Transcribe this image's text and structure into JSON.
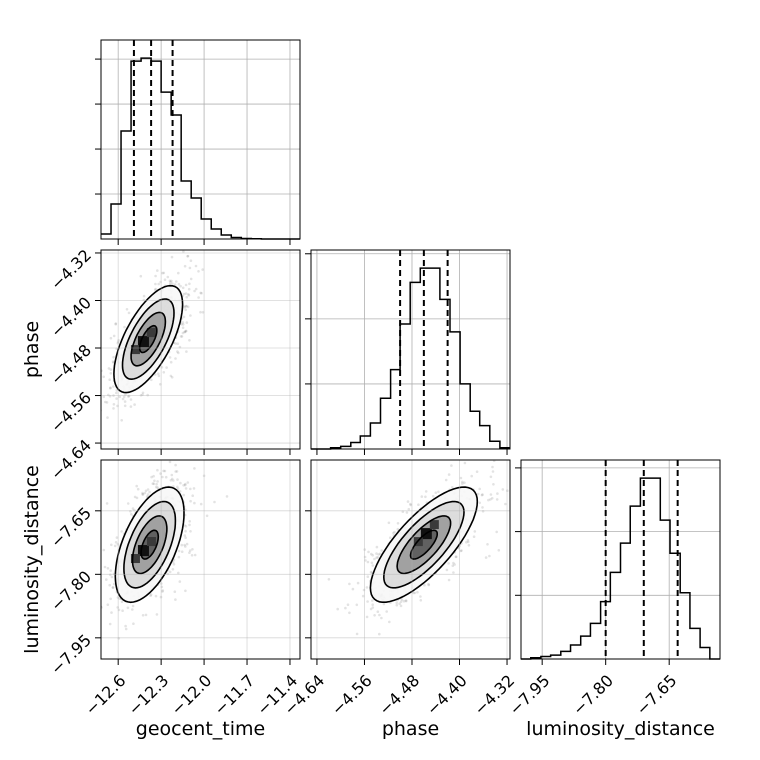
{
  "chart_data": {
    "type": "corner",
    "parameters": [
      "geocent_time",
      "phase",
      "luminosity_distance"
    ],
    "axis_labels": {
      "x": [
        "geocent_time",
        "phase",
        "luminosity_distance"
      ],
      "y": [
        "phase",
        "luminosity_distance"
      ]
    },
    "ranges": {
      "geocent_time": [
        -12.72,
        -11.33
      ],
      "phase": [
        -4.65,
        -4.315
      ],
      "luminosity_distance": [
        -8.0,
        -7.53
      ]
    },
    "ticks": {
      "geocent_time": [
        -12.6,
        -12.3,
        -12.0,
        -11.7,
        -11.4
      ],
      "phase": [
        -4.64,
        -4.56,
        -4.48,
        -4.4,
        -4.32
      ],
      "luminosity_distance": [
        -7.95,
        -7.8,
        -7.65
      ]
    },
    "tick_labels": {
      "geocent_time": [
        "−12.6",
        "−12.3",
        "−12.0",
        "−11.7",
        "−11.4"
      ],
      "phase": [
        "−4.64",
        "−4.56",
        "−4.48",
        "−4.40",
        "−4.32"
      ],
      "luminosity_distance": [
        "−7.95",
        "−7.80",
        "−7.65"
      ]
    },
    "diagonal_histograms": [
      {
        "parameter": "geocent_time",
        "bin_edges": [
          -12.72,
          -12.65,
          -12.58,
          -12.51,
          -12.44,
          -12.37,
          -12.3,
          -12.23,
          -12.16,
          -12.09,
          -12.02,
          -11.95,
          -11.88,
          -11.81,
          -11.74,
          -11.67,
          -11.6,
          -11.53,
          -11.46,
          -11.39,
          -11.33
        ],
        "counts": [
          5,
          35,
          108,
          178,
          181,
          178,
          147,
          124,
          58,
          41,
          20,
          10,
          4,
          1.5,
          0.5,
          0.2,
          0,
          0,
          0,
          0
        ],
        "quantiles": [
          -12.49,
          -12.37,
          -12.22
        ]
      },
      {
        "parameter": "phase",
        "bin_edges": [
          -4.65,
          -4.633,
          -4.617,
          -4.6,
          -4.583,
          -4.567,
          -4.55,
          -4.533,
          -4.516,
          -4.5,
          -4.483,
          -4.466,
          -4.449,
          -4.433,
          -4.416,
          -4.399,
          -4.382,
          -4.366,
          -4.349,
          -4.332,
          -4.315
        ],
        "counts": [
          0,
          0,
          1,
          2,
          5,
          10,
          20,
          39,
          61,
          96,
          128,
          139,
          139,
          115,
          90,
          50,
          29,
          18,
          6,
          1
        ],
        "quantiles": [
          -4.5,
          -4.46,
          -4.42
        ]
      },
      {
        "parameter": "luminosity_distance",
        "bin_edges": [
          -8.0,
          -7.977,
          -7.953,
          -7.93,
          -7.906,
          -7.883,
          -7.859,
          -7.836,
          -7.812,
          -7.789,
          -7.765,
          -7.742,
          -7.718,
          -7.695,
          -7.671,
          -7.648,
          -7.624,
          -7.601,
          -7.577,
          -7.554,
          -7.53
        ],
        "counts": [
          0,
          1,
          2,
          3,
          6,
          11,
          18,
          28,
          45,
          68,
          91,
          120,
          142,
          142,
          109,
          83,
          52,
          24,
          9,
          0
        ],
        "quantiles": [
          -7.8,
          -7.71,
          -7.63
        ]
      }
    ],
    "pair_plots": [
      {
        "x": "geocent_time",
        "y": "phase",
        "mean": [
          -12.39,
          -4.465
        ],
        "std": [
          0.12,
          0.045
        ],
        "correlation": 0.65,
        "density_peak": [
          -12.42,
          -4.47
        ]
      },
      {
        "x": "geocent_time",
        "y": "luminosity_distance",
        "mean": [
          -12.38,
          -7.73
        ],
        "std": [
          0.12,
          0.068
        ],
        "correlation": 0.55,
        "density_peak": [
          -12.42,
          -7.745
        ]
      },
      {
        "x": "phase",
        "y": "luminosity_distance",
        "mean": [
          -4.46,
          -7.73
        ],
        "std": [
          0.045,
          0.068
        ],
        "correlation": 0.75,
        "density_peak": [
          -4.455,
          -7.705
        ]
      }
    ],
    "contour_levels_sigma": [
      0.5,
      1.0,
      1.5,
      2.0
    ],
    "grid": true
  }
}
